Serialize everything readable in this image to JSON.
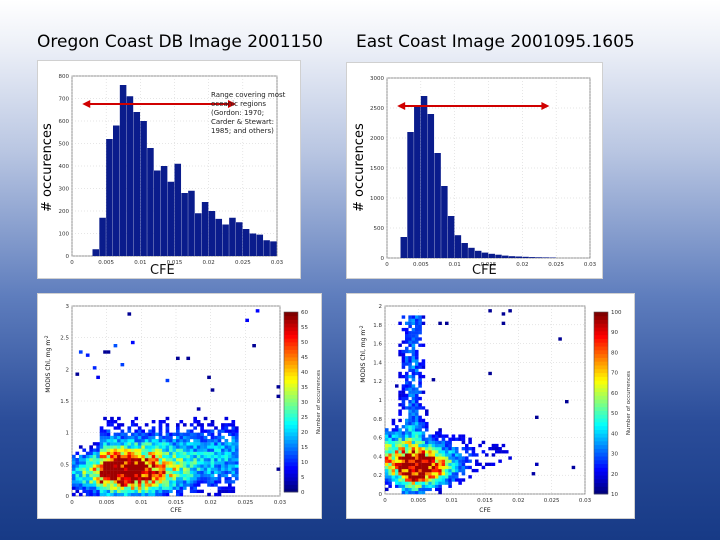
{
  "titles": {
    "left": "Oregon Coast DB Image 2001150",
    "right": "East Coast Image 2001095.1605"
  },
  "labels": {
    "occurences": "# occurences",
    "cfe": "CFE",
    "modis_chl": "MODIS Chl, mg m",
    "modis_chl_sup": "-2",
    "number_of_occurrences": "Number of occurrences"
  },
  "annotation": {
    "lines": [
      "Range covering most",
      "oceanic regions",
      "(Gordon: 1970;",
      "Carder & Stewart:",
      "1985; and others)"
    ]
  },
  "chart_data": [
    {
      "type": "bar",
      "title": "Oregon Coast DB Image 2001150",
      "xlabel": "CFE",
      "ylabel": "# occurences",
      "xlim": [
        0,
        0.03
      ],
      "ylim": [
        0,
        800
      ],
      "xticks": [
        "0",
        "0.005",
        "0.01",
        "0.015",
        "0.02",
        "0.025",
        "0.03"
      ],
      "yticks": [
        "0",
        "100",
        "200",
        "300",
        "400",
        "500",
        "600",
        "700",
        "800"
      ],
      "bin_width": 0.001,
      "bin_start": 0.003,
      "values": [
        30,
        170,
        520,
        580,
        760,
        710,
        640,
        600,
        480,
        380,
        400,
        330,
        410,
        280,
        290,
        190,
        240,
        200,
        165,
        140,
        170,
        150,
        120,
        100,
        95,
        70,
        65
      ],
      "bar_color": "#0a1c8c",
      "annotation_range": [
        0.0015,
        0.024
      ]
    },
    {
      "type": "bar",
      "title": "East Coast Image 2001095.1605",
      "xlabel": "CFE",
      "ylabel": "# occurences",
      "xlim": [
        0,
        0.03
      ],
      "ylim": [
        0,
        3000
      ],
      "xticks": [
        "0",
        "0.005",
        "0.01",
        "0.015",
        "0.02",
        "0.025",
        "0.03"
      ],
      "yticks": [
        "0",
        "500",
        "1000",
        "1500",
        "2000",
        "2500",
        "3000"
      ],
      "bin_width": 0.001,
      "bin_start": 0.002,
      "values": [
        350,
        2100,
        2550,
        2700,
        2400,
        1750,
        1200,
        700,
        380,
        250,
        170,
        120,
        90,
        70,
        55,
        40,
        30,
        25,
        20,
        15,
        12,
        10,
        8
      ],
      "bar_color": "#0a1c8c",
      "annotation_range": [
        0.0015,
        0.024
      ]
    },
    {
      "type": "heatmap",
      "xlabel": "CFE",
      "ylabel": "MODIS Chl, mg m-2",
      "xlim": [
        0,
        0.03
      ],
      "ylim": [
        0,
        3
      ],
      "xticks": [
        "0",
        "0.005",
        "0.01",
        "0.015",
        "0.02",
        "0.025",
        "0.03"
      ],
      "yticks": [
        "0",
        "0.5",
        "1",
        "1.5",
        "2",
        "2.5",
        "3"
      ],
      "colorbar": {
        "label": "Number of occurrences",
        "range": [
          0,
          60
        ],
        "ticks": [
          "0",
          "5",
          "10",
          "15",
          "20",
          "25",
          "30",
          "35",
          "40",
          "45",
          "50",
          "55",
          "60"
        ]
      }
    },
    {
      "type": "heatmap",
      "xlabel": "CFE",
      "ylabel": "MODIS Chl, mg m-2",
      "xlim": [
        0,
        0.03
      ],
      "ylim": [
        0,
        2
      ],
      "xticks": [
        "0",
        "0.005",
        "0.01",
        "0.015",
        "0.02",
        "0.025",
        "0.03"
      ],
      "yticks": [
        "0",
        "0.2",
        "0.4",
        "0.6",
        "0.8",
        "1",
        "1.2",
        "1.4",
        "1.6",
        "1.8",
        "2"
      ],
      "colorbar": {
        "label": "Number of occurrences",
        "range": [
          10,
          100
        ],
        "ticks": [
          "10",
          "20",
          "30",
          "40",
          "50",
          "60",
          "70",
          "80",
          "90",
          "100"
        ]
      }
    }
  ]
}
